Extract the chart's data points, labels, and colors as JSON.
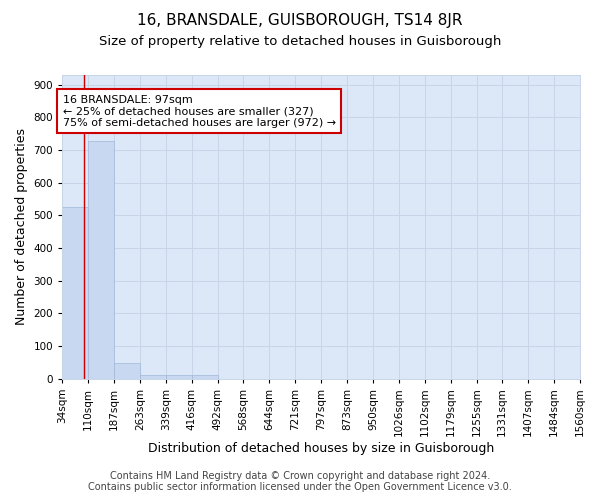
{
  "title1": "16, BRANSDALE, GUISBOROUGH, TS14 8JR",
  "title2": "Size of property relative to detached houses in Guisborough",
  "xlabel": "Distribution of detached houses by size in Guisborough",
  "ylabel": "Number of detached properties",
  "footer1": "Contains HM Land Registry data © Crown copyright and database right 2024.",
  "footer2": "Contains public sector information licensed under the Open Government Licence v3.0.",
  "bar_edges": [
    34,
    110,
    187,
    263,
    339,
    416,
    492,
    568,
    644,
    721,
    797,
    873,
    950,
    1026,
    1102,
    1179,
    1255,
    1331,
    1407,
    1484,
    1560
  ],
  "bar_heights": [
    527,
    727,
    47,
    12,
    10,
    10,
    0,
    0,
    0,
    0,
    0,
    0,
    0,
    0,
    0,
    0,
    0,
    0,
    0,
    0
  ],
  "bar_color": "#c8d8f0",
  "bar_edgecolor": "#a0b8d8",
  "property_size": 97,
  "red_line_color": "#cc0000",
  "annotation_text": "16 BRANSDALE: 97sqm\n← 25% of detached houses are smaller (327)\n75% of semi-detached houses are larger (972) →",
  "annotation_box_color": "#ffffff",
  "annotation_box_edgecolor": "#cc0000",
  "ylim": [
    0,
    930
  ],
  "yticks": [
    0,
    100,
    200,
    300,
    400,
    500,
    600,
    700,
    800,
    900
  ],
  "grid_color": "#c8d4e8",
  "bg_color": "#dce8f8",
  "fig_bg_color": "#ffffff",
  "title1_fontsize": 11,
  "title2_fontsize": 9.5,
  "xlabel_fontsize": 9,
  "ylabel_fontsize": 9,
  "tick_fontsize": 7.5,
  "footer_fontsize": 7
}
